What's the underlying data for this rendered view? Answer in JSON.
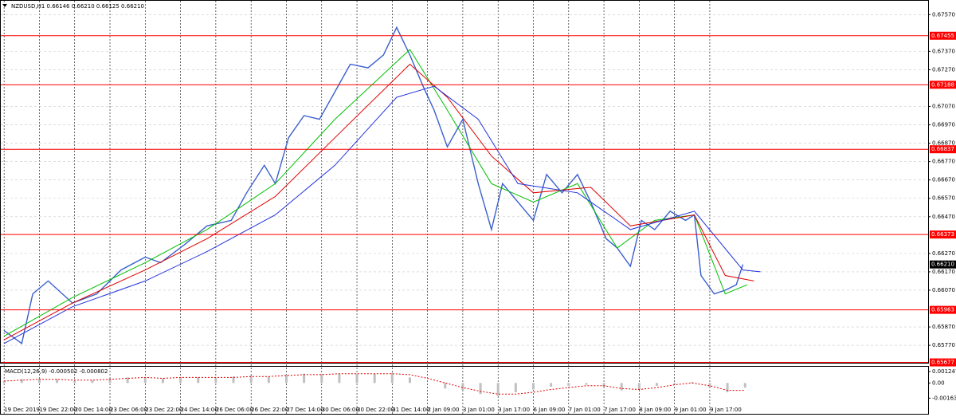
{
  "chart_data": [
    {
      "type": "line",
      "title": "NZDUSD,H1  0.66146 0.66210 0.66125 0.66210",
      "xlim": [
        -1.5,
        419
      ],
      "ylim": [
        0.65675,
        0.67645
      ],
      "xticks": [
        {
          "value": 0,
          "label": "19 Dec 2019"
        },
        {
          "value": 16,
          "label": "19 Dec 22:00"
        },
        {
          "value": 32,
          "label": "20 Dec 14:00"
        },
        {
          "value": 48,
          "label": "23 Dec 06:00"
        },
        {
          "value": 64,
          "label": "23 Dec 22:00"
        },
        {
          "value": 80,
          "label": "24 Dec 14:00"
        },
        {
          "value": 96,
          "label": "26 Dec 06:00"
        },
        {
          "value": 112,
          "label": "26 Dec 22:00"
        },
        {
          "value": 128,
          "label": "27 Dec 14:00"
        },
        {
          "value": 144,
          "label": "30 Dec 06:00"
        },
        {
          "value": 160,
          "label": "30 Dec 22:00"
        },
        {
          "value": 176,
          "label": "31 Dec 14:00"
        },
        {
          "value": 192,
          "label": "2 Jan 09:00"
        },
        {
          "value": 208,
          "label": "3 Jan 01:00"
        },
        {
          "value": 224,
          "label": "3 Jan 17:00"
        },
        {
          "value": 240,
          "label": "6 Jan 09:00"
        },
        {
          "value": 256,
          "label": "7 Jan 01:00"
        },
        {
          "value": 272,
          "label": "7 Jan 17:00"
        },
        {
          "value": 288,
          "label": "8 Jan 09:00"
        },
        {
          "value": 304,
          "label": "9 Jan 01:00"
        },
        {
          "value": 320,
          "label": "9 Jan 17:00"
        }
      ],
      "yticks": [
        {
          "value": 0.6757,
          "label": "0.67570"
        },
        {
          "value": 0.6737,
          "label": "0.67370"
        },
        {
          "value": 0.6727,
          "label": "0.67270"
        },
        {
          "value": 0.6707,
          "label": "0.67070"
        },
        {
          "value": 0.6697,
          "label": "0.66970"
        },
        {
          "value": 0.6687,
          "label": "0.66870"
        },
        {
          "value": 0.6677,
          "label": "0.66770"
        },
        {
          "value": 0.6667,
          "label": "0.66670"
        },
        {
          "value": 0.6657,
          "label": "0.66570"
        },
        {
          "value": 0.6647,
          "label": "0.66470"
        },
        {
          "value": 0.6627,
          "label": "0.66270"
        },
        {
          "value": 0.6617,
          "label": "0.66170"
        },
        {
          "value": 0.6607,
          "label": "0.66070"
        },
        {
          "value": 0.6587,
          "label": "0.65870"
        },
        {
          "value": 0.6577,
          "label": "0.65770"
        }
      ],
      "grid": true,
      "levels": [
        0.67455,
        0.67188,
        0.66837,
        0.66373,
        0.65963,
        0.65677
      ],
      "level_color": "#ff0000",
      "current_price": {
        "value": 0.6621,
        "label": "0.66210"
      },
      "series": [
        {
          "color": "#3a5fcd",
          "x": [
            0,
            8,
            13,
            20,
            31,
            42,
            53,
            64,
            71,
            82,
            92,
            103,
            110,
            118,
            123,
            129,
            136,
            143,
            150,
            157,
            165,
            172,
            178,
            184,
            190,
            195,
            201,
            208,
            215,
            221,
            226,
            233,
            240,
            246,
            253,
            260,
            266,
            273,
            278,
            284,
            289,
            295,
            302,
            309,
            313,
            316,
            322,
            327,
            332,
            335
          ],
          "values": [
            0.6585,
            0.6578,
            0.6605,
            0.6612,
            0.66,
            0.6605,
            0.6618,
            0.6625,
            0.6622,
            0.6632,
            0.6642,
            0.6645,
            0.666,
            0.6675,
            0.6665,
            0.669,
            0.6702,
            0.67,
            0.6715,
            0.673,
            0.6728,
            0.6735,
            0.675,
            0.6735,
            0.6718,
            0.6705,
            0.6685,
            0.67,
            0.6665,
            0.664,
            0.6665,
            0.6655,
            0.6645,
            0.667,
            0.666,
            0.667,
            0.6655,
            0.6635,
            0.663,
            0.662,
            0.6645,
            0.664,
            0.665,
            0.6645,
            0.6648,
            0.6615,
            0.6605,
            0.6607,
            0.661,
            0.6621
          ]
        },
        {
          "color": "#00c000",
          "x": [
            0,
            31,
            64,
            92,
            123,
            150,
            184,
            201,
            221,
            240,
            260,
            278,
            295,
            313,
            327,
            337
          ],
          "values": [
            0.6582,
            0.6603,
            0.6622,
            0.664,
            0.6665,
            0.67,
            0.6738,
            0.6705,
            0.6665,
            0.6655,
            0.6665,
            0.663,
            0.6645,
            0.6648,
            0.6605,
            0.661
          ]
        },
        {
          "color": "#e00000",
          "x": [
            0,
            31,
            64,
            92,
            123,
            150,
            184,
            201,
            221,
            240,
            266,
            284,
            313,
            327,
            340
          ],
          "values": [
            0.658,
            0.66,
            0.6618,
            0.6635,
            0.6658,
            0.669,
            0.673,
            0.6712,
            0.668,
            0.666,
            0.6663,
            0.6642,
            0.6648,
            0.6615,
            0.6612
          ]
        },
        {
          "color": "#2233dd",
          "x": [
            0,
            31,
            64,
            92,
            123,
            150,
            178,
            195,
            215,
            233,
            260,
            284,
            313,
            335,
            343
          ],
          "values": [
            0.6578,
            0.6598,
            0.6612,
            0.6628,
            0.6648,
            0.6675,
            0.6712,
            0.6718,
            0.67,
            0.6665,
            0.666,
            0.664,
            0.665,
            0.6618,
            0.6617
          ]
        }
      ]
    },
    {
      "type": "macd",
      "title": "MACD(12,26,9) -0.000502 -0.000802",
      "xlim": [
        -1.5,
        419
      ],
      "ylim": [
        -0.00333,
        0.00175
      ],
      "yticks": [
        0.001247,
        {
          "value": 0,
          "label": "0.00"
        },
        -0.001638
      ],
      "x": [
        0,
        8,
        16,
        24,
        32,
        40,
        48,
        56,
        64,
        72,
        80,
        88,
        96,
        104,
        112,
        120,
        128,
        136,
        144,
        152,
        160,
        168,
        176,
        184,
        192,
        200,
        208,
        216,
        224,
        232,
        240,
        248,
        256,
        264,
        272,
        280,
        288,
        296,
        304,
        312,
        320,
        328,
        336
      ],
      "series": [
        {
          "color": "#c0c0c0",
          "values": [
            0.0002,
            0.0004,
            0.0005,
            0.0004,
            0.0002,
            0.0003,
            0.0005,
            0.0006,
            0.0006,
            0.0005,
            0.0006,
            0.0006,
            0.0005,
            0.0007,
            0.0008,
            0.0007,
            0.0009,
            0.001,
            0.001,
            0.001,
            0.001,
            0.001,
            0.0011,
            0.0006,
            0,
            -0.0006,
            -0.0008,
            -0.0012,
            -0.0014,
            -0.001,
            -0.0007,
            -0.0004,
            -0.0003,
            -0.0002,
            -0.0004,
            -0.0008,
            -0.0007,
            -0.0003,
            -0.0001,
            0.0001,
            -0.0005,
            -0.001,
            -0.0005
          ]
        },
        {
          "color": "#e00000",
          "values": [
            0.0002,
            0.0003,
            0.0004,
            0.0004,
            0.0003,
            0.0003,
            0.0004,
            0.0005,
            0.0006,
            0.0005,
            0.0006,
            0.0006,
            0.0006,
            0.0006,
            0.0007,
            0.0007,
            0.0008,
            0.0009,
            0.0009,
            0.001,
            0.001,
            0.001,
            0.001,
            0.0009,
            0.0005,
            0,
            -0.0005,
            -0.0009,
            -0.0012,
            -0.0012,
            -0.001,
            -0.0007,
            -0.0005,
            -0.0003,
            -0.0003,
            -0.0006,
            -0.0007,
            -0.0005,
            -0.0002,
            0,
            -0.0003,
            -0.0008,
            -0.0008
          ]
        }
      ]
    }
  ]
}
